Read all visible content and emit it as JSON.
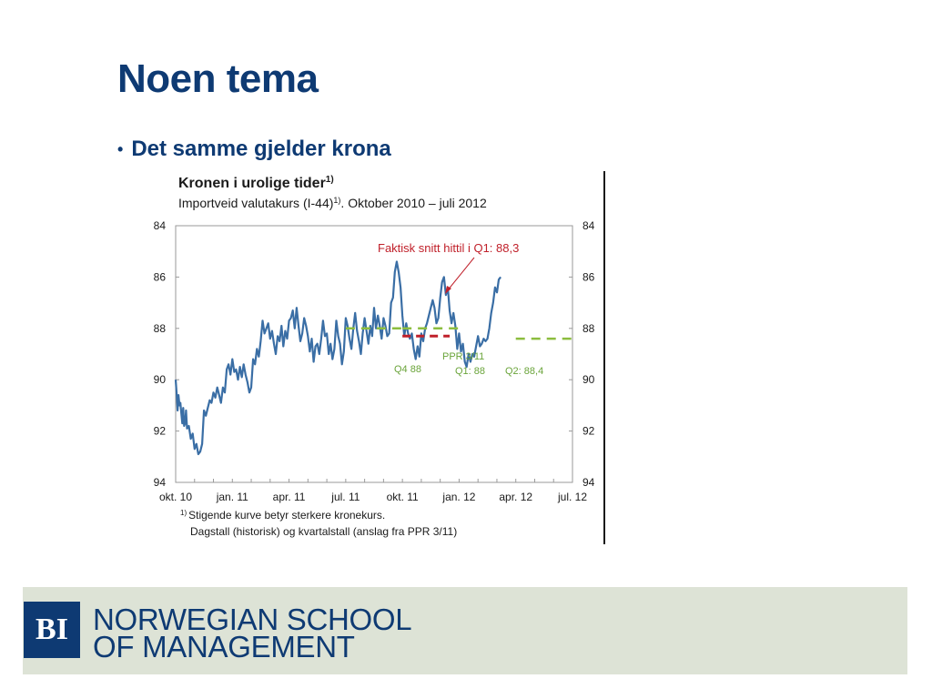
{
  "slide": {
    "title": "Noen tema",
    "bullet": "Det samme gjelder krona"
  },
  "chart_data": {
    "type": "line",
    "title": "Kronen i urolige tider",
    "title_sup": "1)",
    "subtitle": "Importveid valutakurs (I-44)",
    "subtitle_sup": "1)",
    "subtitle_rest": ". Oktober 2010 – juli 2012",
    "x_tick_labels": [
      "okt. 10",
      "jan. 11",
      "apr. 11",
      "jul. 11",
      "okt. 11",
      "jan. 12",
      "apr. 12",
      "jul. 12"
    ],
    "y_ticks": [
      84,
      86,
      88,
      90,
      92,
      94
    ],
    "ylim": [
      84,
      94
    ],
    "y_inverted": true,
    "grid": false,
    "colors": {
      "series": "#3a6ea5",
      "dashed": "#8cbd3f",
      "actual_q1": "#c0202a",
      "annotation": "#c0202a",
      "labels_green": "#6aa43a",
      "axis": "#9a9a9a",
      "text": "#1a1a1a"
    },
    "series": [
      {
        "x": [
          0.0,
          0.05,
          0.1,
          0.15,
          0.2,
          0.25,
          0.3,
          0.35,
          0.4,
          0.45,
          0.5,
          0.55,
          0.6,
          0.7,
          0.8,
          0.9,
          1.0,
          1.1,
          1.2,
          1.3,
          1.4,
          1.5,
          1.6,
          1.7,
          1.8,
          1.9,
          2.0,
          2.1,
          2.2,
          2.3,
          2.4,
          2.5,
          2.6,
          2.7,
          2.8,
          2.9,
          3.0,
          3.1,
          3.2,
          3.3,
          3.4,
          3.5,
          3.6,
          3.7,
          3.8,
          3.9,
          4.0,
          4.1,
          4.2,
          4.3,
          4.4,
          4.5,
          4.6,
          4.7,
          4.8,
          4.9,
          5.0,
          5.1,
          5.2,
          5.3,
          5.4,
          5.5,
          5.6,
          5.7,
          5.8,
          5.9,
          6.0,
          6.1,
          6.2,
          6.3,
          6.4,
          6.5,
          6.6,
          6.7,
          6.8,
          6.9,
          7.0,
          7.1,
          7.2,
          7.3,
          7.4,
          7.5,
          7.6,
          7.7,
          7.8,
          7.9,
          8.0,
          8.1,
          8.2,
          8.3,
          8.4,
          8.5,
          8.6,
          8.7,
          8.8,
          8.9,
          9.0,
          9.1,
          9.2,
          9.3,
          9.4,
          9.5,
          9.6,
          9.7,
          9.8,
          9.9,
          10.0,
          10.1,
          10.2,
          10.3,
          10.4,
          10.5,
          10.6,
          10.7,
          10.8,
          10.9,
          11.0,
          11.1,
          11.2,
          11.3,
          11.4,
          11.5,
          11.6,
          11.7,
          11.8,
          11.9,
          12.0,
          12.1,
          12.2,
          12.3,
          12.4,
          12.5,
          12.6,
          12.7,
          12.8,
          12.9,
          13.0,
          13.1,
          13.2,
          13.3,
          13.4,
          13.5,
          13.6,
          13.7,
          13.8,
          13.9,
          14.0,
          14.1,
          14.2,
          14.3,
          14.4,
          14.5,
          14.6,
          14.7,
          14.8,
          14.9,
          15.0,
          15.1,
          15.2,
          15.3,
          15.4,
          15.5,
          15.6,
          15.7,
          15.8,
          15.9,
          16.0,
          16.1,
          16.2,
          16.3,
          16.4,
          16.5,
          16.6,
          16.7,
          16.8,
          16.9,
          17.0,
          17.1,
          17.2
        ],
        "values": [
          90.0,
          90.5,
          91.2,
          90.6,
          91.0,
          90.9,
          91.3,
          91.7,
          91.1,
          91.8,
          91.7,
          91.2,
          91.9,
          91.8,
          92.3,
          92.1,
          92.7,
          92.5,
          92.9,
          92.8,
          92.5,
          91.2,
          91.4,
          91.1,
          90.8,
          90.9,
          90.5,
          90.7,
          90.3,
          90.6,
          90.9,
          90.3,
          90.5,
          89.6,
          89.4,
          89.8,
          89.2,
          89.7,
          89.6,
          90.0,
          89.5,
          89.9,
          89.4,
          89.8,
          90.1,
          90.5,
          90.3,
          89.2,
          89.4,
          88.8,
          89.1,
          88.5,
          87.7,
          88.2,
          88.0,
          87.8,
          88.4,
          88.1,
          88.6,
          89.0,
          88.3,
          88.5,
          87.9,
          88.7,
          88.1,
          88.4,
          87.7,
          87.6,
          87.3,
          88.0,
          87.2,
          87.9,
          88.5,
          88.2,
          87.6,
          87.9,
          88.3,
          88.9,
          88.4,
          89.3,
          88.7,
          88.6,
          89.0,
          88.4,
          87.7,
          88.3,
          88.2,
          89.0,
          88.6,
          89.2,
          88.8,
          87.7,
          88.3,
          88.6,
          89.4,
          88.9,
          87.6,
          87.9,
          88.4,
          88.8,
          88.0,
          87.4,
          88.1,
          88.5,
          89.0,
          88.2,
          87.6,
          88.1,
          88.6,
          87.9,
          88.3,
          87.2,
          88.0,
          87.5,
          87.9,
          88.4,
          87.6,
          87.9,
          88.3,
          88.2,
          87.0,
          86.8,
          85.8,
          85.4,
          85.8,
          86.4,
          87.5,
          88.3,
          87.8,
          88.2,
          88.4,
          88.2,
          88.8,
          89.2,
          88.7,
          89.1,
          88.2,
          88.5,
          88.0,
          87.8,
          87.5,
          87.2,
          86.9,
          87.2,
          87.8,
          87.6,
          86.8,
          86.2,
          86.0,
          86.7,
          86.4,
          87.3,
          87.8,
          87.4,
          87.9,
          88.8,
          88.2,
          88.9,
          88.6,
          89.3,
          89.5,
          89.0,
          89.3,
          89.0,
          89.1,
          88.7,
          88.3,
          88.7,
          88.6,
          88.4,
          88.5,
          88.4,
          88.0,
          87.4,
          87.0,
          86.4,
          86.6,
          86.1,
          86.0
        ]
      }
    ],
    "x_units_note": "months since okt. 10",
    "dashed_segments": [
      {
        "label": "Q4 88",
        "x": [
          9.0,
          12.0
        ],
        "value": 88.0
      },
      {
        "label": "Q1: 88",
        "x": [
          12.0,
          15.0
        ],
        "value": 88.0
      },
      {
        "label": "Q2: 88,4",
        "x": [
          18.0,
          21.0
        ],
        "value": 88.4
      }
    ],
    "actual_segment": {
      "x": [
        12.0,
        14.5
      ],
      "value": 88.3
    },
    "labels": {
      "ppr": "PPR 3/11",
      "q4": "Q4 88",
      "q1": "Q1: 88",
      "q2": "Q2: 88,4",
      "annotation": "Faktisk snitt hittil i Q1: 88,3"
    },
    "footnote_sup": "1)",
    "footnote_1": "Stigende kurve betyr sterkere kronekurs.",
    "footnote_2": "Dagstall (historisk) og kvartalstall (anslag fra PPR 3/11)"
  },
  "footer": {
    "logo_text": "BI",
    "school_line1": "NORWEGIAN SCHOOL",
    "school_line2": "OF MANAGEMENT"
  }
}
